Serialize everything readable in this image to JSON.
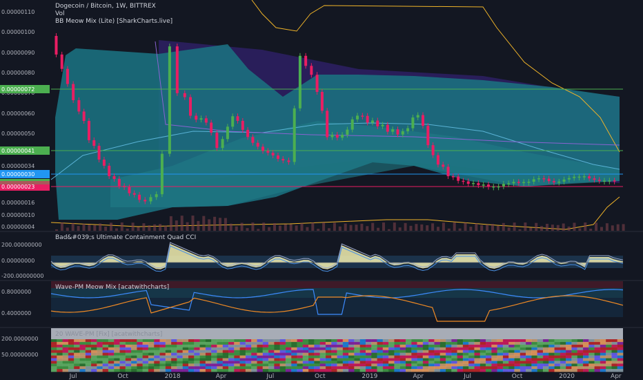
{
  "header": {
    "title": "Dogecoin / Bitcoin, 1W, BITTREX",
    "vol_label": "Vol",
    "bb_label": "BB Meow Mix (Lite) [SharkCharts.live]"
  },
  "panes": {
    "cci_label": "Bad&#039;s Ultimate Containment Quad CCI",
    "wave_label": "Wave-PM Meow Mix [acatwithcharts]",
    "heat_label": "20 WAVE-PM [Fix] [acatwithcharts]"
  },
  "chart_data": [
    {
      "type": "candlestick",
      "pane": "price",
      "y_ticks": [
        "0.00000110",
        "0.00000100",
        "0.00000090",
        "0.00000080",
        "0.00000070",
        "0.00000060",
        "0.00000050",
        "0.00000034",
        "0.00000016",
        "0.00000010",
        "0.00000004"
      ],
      "price_labels": [
        {
          "value": "0.00000072",
          "color": "#4caf50"
        },
        {
          "value": "0.00000041",
          "color": "#4caf50"
        },
        {
          "value": "0.00000030",
          "color": "#2196f3"
        },
        {
          "value": "0.00000023",
          "color": "#e91e63"
        }
      ],
      "x_ticks": [
        "Jul",
        "Oct",
        "2018",
        "Apr",
        "Jul",
        "Oct",
        "2019",
        "Apr",
        "Jul",
        "Oct",
        "2020",
        "Apr"
      ],
      "x_tick_dates": [
        "2017-07-01",
        "2017-10-01",
        "2018-01-01",
        "2018-04-01",
        "2018-07-01",
        "2018-10-01",
        "2019-01-01",
        "2019-04-01",
        "2019-07-01",
        "2019-10-01",
        "2020-01-01",
        "2020-04-01"
      ],
      "close_path": [
        [
          "2017-05-28",
          9.8e-07
        ],
        [
          "2017-06-18",
          8e-07
        ],
        [
          "2017-07-09",
          6.8e-07
        ],
        [
          "2017-08-06",
          4.8e-07
        ],
        [
          "2017-09-03",
          3.3e-07
        ],
        [
          "2017-10-01",
          2.4e-07
        ],
        [
          "2017-10-29",
          1.9e-07
        ],
        [
          "2017-11-19",
          1.6e-07
        ],
        [
          "2017-12-10",
          2e-07
        ],
        [
          "2017-12-24",
          4e-07
        ],
        [
          "2018-01-07",
          9.2e-07
        ],
        [
          "2018-01-21",
          7.2e-07
        ],
        [
          "2018-02-11",
          6e-07
        ],
        [
          "2018-03-11",
          5.5e-07
        ],
        [
          "2018-04-01",
          4.3e-07
        ],
        [
          "2018-04-29",
          5.8e-07
        ],
        [
          "2018-05-27",
          4.9e-07
        ],
        [
          "2018-06-24",
          4e-07
        ],
        [
          "2018-07-22",
          3.8e-07
        ],
        [
          "2018-08-12",
          3.6e-07
        ],
        [
          "2018-09-02",
          8.8e-07
        ],
        [
          "2018-09-23",
          8e-07
        ],
        [
          "2018-10-21",
          5e-07
        ],
        [
          "2018-11-18",
          4.8e-07
        ],
        [
          "2018-12-16",
          6e-07
        ],
        [
          "2019-01-13",
          5.5e-07
        ],
        [
          "2019-02-10",
          5.2e-07
        ],
        [
          "2019-03-10",
          5e-07
        ],
        [
          "2019-04-07",
          6e-07
        ],
        [
          "2019-05-05",
          3.8e-07
        ],
        [
          "2019-06-02",
          3e-07
        ],
        [
          "2019-06-30",
          2.6e-07
        ],
        [
          "2019-07-28",
          2.4e-07
        ],
        [
          "2019-08-25",
          2.3e-07
        ],
        [
          "2019-09-22",
          2.5e-07
        ],
        [
          "2019-10-20",
          2.6e-07
        ],
        [
          "2019-11-17",
          2.8e-07
        ],
        [
          "2019-12-15",
          2.6e-07
        ],
        [
          "2020-01-12",
          2.8e-07
        ],
        [
          "2020-02-09",
          3e-07
        ],
        [
          "2020-03-08",
          2.6e-07
        ],
        [
          "2020-04-05",
          2.7e-07
        ]
      ]
    },
    {
      "type": "line",
      "pane": "cci",
      "y_ticks": [
        "200.00000000",
        "0.00000000",
        "-200.00000000"
      ]
    },
    {
      "type": "line",
      "pane": "wave",
      "y_ticks": [
        "0.8000000",
        "0.4000000"
      ]
    },
    {
      "type": "heatmap",
      "pane": "heat",
      "y_ticks": [
        "200.0000000",
        "50.00000000"
      ]
    }
  ],
  "colors": {
    "background": "#131722",
    "bb_fill": "#1b6f7e",
    "bb_fill_alt": "#207c87",
    "upper_cloud": "#2a1f5e",
    "candle_up": "#4caf50",
    "candle_down": "#e91e63",
    "cci_fill": "#f3f0b0",
    "wave_orange": "#f08a24",
    "wave_blue": "#3d8bfd",
    "green_line": "#4caf50",
    "blue_line": "#2196f3",
    "pink_line": "#e91e63",
    "bb_outer": "#f0b429"
  }
}
